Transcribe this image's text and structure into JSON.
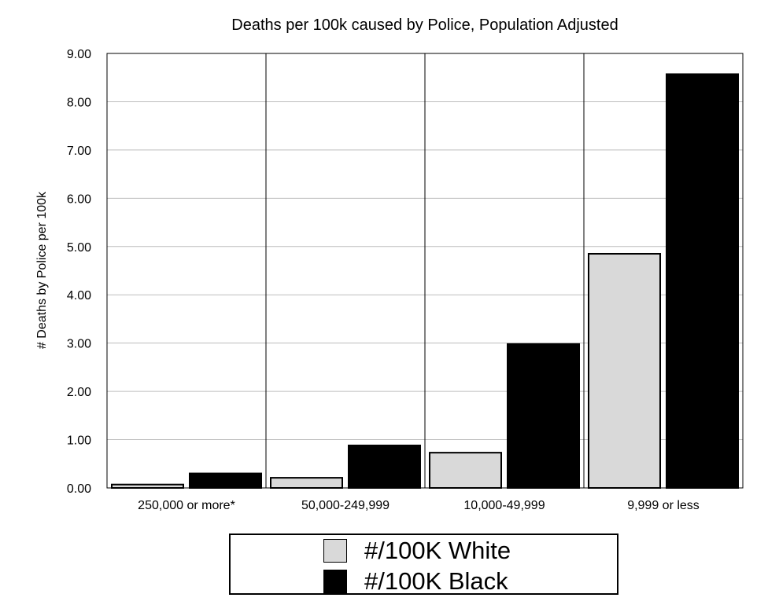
{
  "chart_data": {
    "type": "bar",
    "title": "Deaths per 100k caused by Police, Population Adjusted",
    "xlabel": "",
    "ylabel": "# Deaths by Police per 100k",
    "categories": [
      "250,000 or more*",
      "50,000-249,999",
      "10,000-49,999",
      "9,999 or less"
    ],
    "series": [
      {
        "name": "#/100K White",
        "color": "#d9d9d9",
        "values": [
          0.07,
          0.21,
          0.73,
          4.85
        ]
      },
      {
        "name": "#/100K Black",
        "color": "#000000",
        "values": [
          0.3,
          0.88,
          2.98,
          8.57
        ]
      }
    ],
    "ylim": [
      0,
      9
    ],
    "yticks": [
      "0.00",
      "1.00",
      "2.00",
      "3.00",
      "4.00",
      "5.00",
      "6.00",
      "7.00",
      "8.00",
      "9.00"
    ],
    "grid": true,
    "legend_position": "bottom"
  }
}
